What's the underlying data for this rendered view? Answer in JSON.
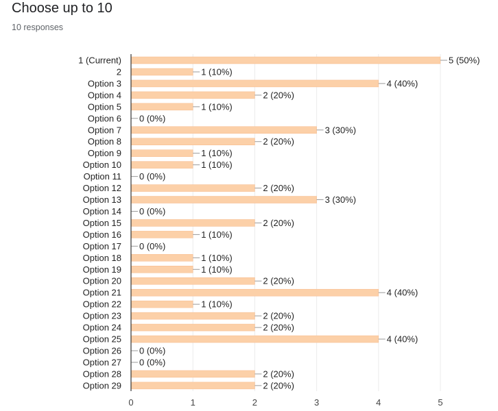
{
  "question": {
    "title": "Choose up to 10",
    "responses": "10 responses"
  },
  "colors": {
    "bar": "#fcd0a8",
    "bar_stroke": "#f7b98a",
    "grid": "#ebebeb",
    "axis": "#333333",
    "text": "#222222"
  },
  "chart_data": {
    "type": "bar",
    "orientation": "horizontal",
    "categories": [
      "1 (Current)",
      "2",
      "Option 3",
      "Option 4",
      "Option 5",
      "Option 6",
      "Option 7",
      "Option 8",
      "Option 9",
      "Option 10",
      "Option 11",
      "Option 12",
      "Option 13",
      "Option 14",
      "Option 15",
      "Option 16",
      "Option 17",
      "Option 18",
      "Option 19",
      "Option 20",
      "Option 21",
      "Option 22",
      "Option 23",
      "Option 24",
      "Option 25",
      "Option 26",
      "Option 27",
      "Option 28",
      "Option 29"
    ],
    "values": [
      5,
      1,
      4,
      2,
      1,
      0,
      3,
      2,
      1,
      1,
      0,
      2,
      3,
      0,
      2,
      1,
      0,
      1,
      1,
      2,
      4,
      1,
      2,
      2,
      4,
      0,
      0,
      2,
      2
    ],
    "data_labels": [
      "5 (50%)",
      "1 (10%)",
      "4 (40%)",
      "2 (20%)",
      "1 (10%)",
      "0 (0%)",
      "3 (30%)",
      "2 (20%)",
      "1 (10%)",
      "1 (10%)",
      "0 (0%)",
      "2 (20%)",
      "3 (30%)",
      "0 (0%)",
      "2 (20%)",
      "1 (10%)",
      "0 (0%)",
      "1 (10%)",
      "1 (10%)",
      "2 (20%)",
      "4 (40%)",
      "1 (10%)",
      "2 (20%)",
      "2 (20%)",
      "4 (40%)",
      "0 (0%)",
      "0 (0%)",
      "2 (20%)",
      "2 (20%)"
    ],
    "xlim": [
      0,
      5
    ],
    "x_ticks": [
      0,
      1,
      2,
      3,
      4,
      5
    ],
    "grid": true,
    "legend": "none"
  }
}
